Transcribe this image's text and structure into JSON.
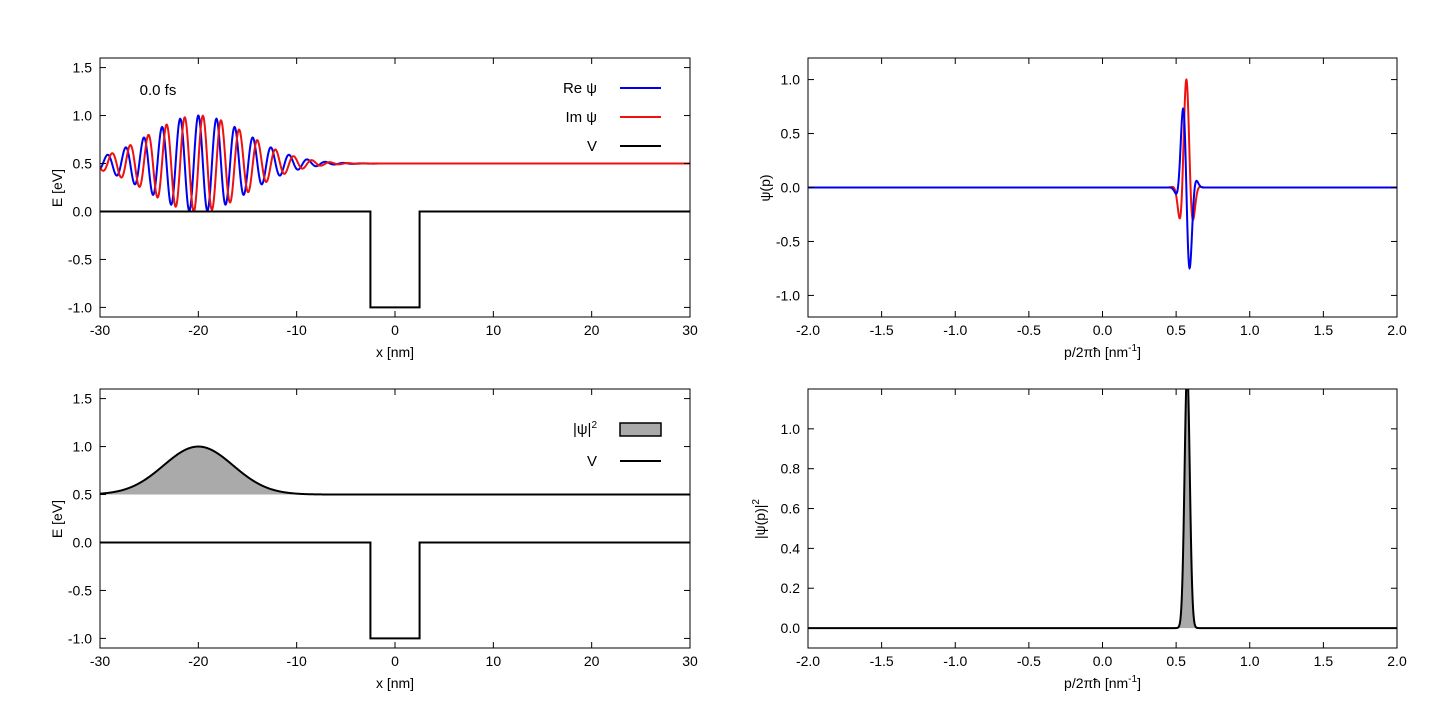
{
  "chart_data": [
    {
      "id": "position-wavefunction",
      "type": "line",
      "annotation": "0.0 fs",
      "xlabel": "x [nm]",
      "ylabel": "E [eV]",
      "xlim": [
        -30,
        30
      ],
      "ylim": [
        -1.1,
        1.6
      ],
      "xticks": [
        "-30",
        "-20",
        "-10",
        "0",
        "10",
        "20",
        "30"
      ],
      "yticks": [
        "-1.0",
        "-0.5",
        "0.0",
        "0.5",
        "1.0",
        "1.5"
      ],
      "legend_position": "top-right",
      "wavepacket": {
        "center": -20,
        "width": 5,
        "wavenumber": 3.4,
        "offset": 0.5,
        "amplitude": 0.5
      },
      "series": [
        {
          "name": "Re ψ",
          "color": "#0000ee",
          "component": "real"
        },
        {
          "name": "Im ψ",
          "color": "#ee1111",
          "component": "imag"
        },
        {
          "name": "V",
          "color": "#000000",
          "component": "potential",
          "points": [
            [
              -30,
              0
            ],
            [
              -2.5,
              0
            ],
            [
              -2.5,
              -1
            ],
            [
              2.5,
              -1
            ],
            [
              2.5,
              0
            ],
            [
              30,
              0
            ]
          ]
        }
      ]
    },
    {
      "id": "momentum-wavefunction",
      "type": "line",
      "xlabel": "p/2πħ [nm",
      "xlabel_sup": "-1",
      "xlabel_end": "]",
      "ylabel": "ψ(p)",
      "xlim": [
        -2.0,
        2.0
      ],
      "ylim": [
        -1.2,
        1.2
      ],
      "xticks": [
        "-2.0",
        "-1.5",
        "-1.0",
        "-0.5",
        "0.0",
        "0.5",
        "1.0",
        "1.5",
        "2.0"
      ],
      "yticks": [
        "-1.0",
        "-0.5",
        "0.0",
        "0.5",
        "1.0"
      ],
      "wavepacket": {
        "center": 0.57,
        "width": 0.032,
        "frequency": 55,
        "amplitude": 1.0
      },
      "series": [
        {
          "component": "real",
          "color": "#0000ee"
        },
        {
          "component": "imag",
          "color": "#ee1111"
        }
      ]
    },
    {
      "id": "position-density",
      "type": "area",
      "xlabel": "x [nm]",
      "ylabel": "E [eV]",
      "xlim": [
        -30,
        30
      ],
      "ylim": [
        -1.1,
        1.6
      ],
      "xticks": [
        "-30",
        "-20",
        "-10",
        "0",
        "10",
        "20",
        "30"
      ],
      "yticks": [
        "-1.0",
        "-0.5",
        "0.0",
        "0.5",
        "1.0",
        "1.5"
      ],
      "legend_position": "top-right",
      "density": {
        "center": -20,
        "width": 5,
        "offset": 0.5,
        "peak": 0.5
      },
      "series": [
        {
          "name": "|ψ|",
          "name_sup": "2",
          "color": "#aaaaaa",
          "component": "density"
        },
        {
          "name": "V",
          "color": "#000000",
          "component": "potential",
          "points": [
            [
              -30,
              0
            ],
            [
              -2.5,
              0
            ],
            [
              -2.5,
              -1
            ],
            [
              2.5,
              -1
            ],
            [
              2.5,
              0
            ],
            [
              30,
              0
            ]
          ]
        }
      ]
    },
    {
      "id": "momentum-density",
      "type": "area",
      "xlabel": "p/2πħ [nm",
      "xlabel_sup": "-1",
      "xlabel_end": "]",
      "ylabel": "|ψ(p)|",
      "ylabel_sup": "2",
      "xlim": [
        -2.0,
        2.0
      ],
      "ylim": [
        -0.1,
        1.2
      ],
      "xticks": [
        "-2.0",
        "-1.5",
        "-1.0",
        "-0.5",
        "0.0",
        "0.5",
        "1.0",
        "1.5",
        "2.0"
      ],
      "yticks": [
        "0.0",
        "0.2",
        "0.4",
        "0.6",
        "0.8",
        "1.0"
      ],
      "density": {
        "center": 0.575,
        "width": 0.025,
        "peak": 1.3
      },
      "series": [
        {
          "component": "density",
          "color": "#aaaaaa"
        }
      ]
    }
  ]
}
